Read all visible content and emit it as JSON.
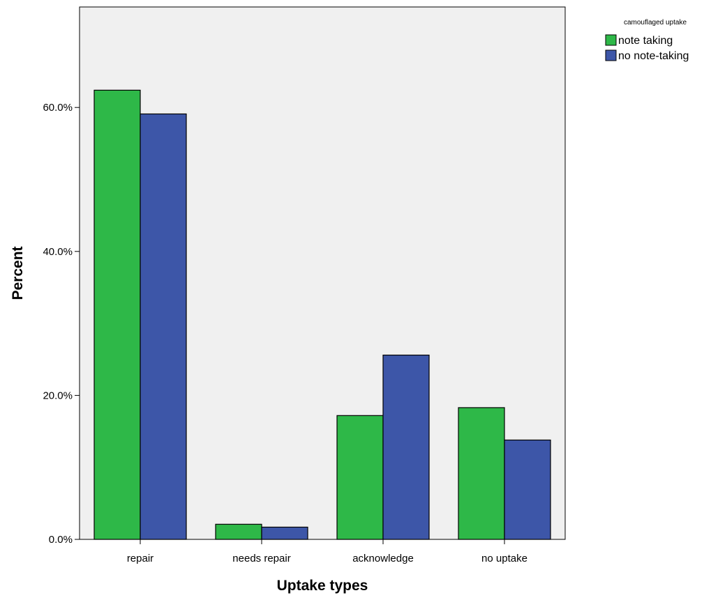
{
  "chart_data": {
    "type": "bar",
    "title": "",
    "xlabel": "Uptake types",
    "ylabel": "Percent",
    "categories": [
      "repair",
      "needs repair",
      "acknowledge",
      "no uptake"
    ],
    "series": [
      {
        "name": "note taking",
        "color": "#2EB848",
        "values": [
          62.4,
          2.1,
          17.2,
          18.3
        ]
      },
      {
        "name": "no note-taking",
        "color": "#3D56A8",
        "values": [
          59.1,
          1.7,
          25.6,
          13.8
        ]
      }
    ],
    "ylim": [
      0,
      74
    ],
    "yticks": [
      0,
      20,
      40,
      60
    ],
    "ytick_labels": [
      "0.0%",
      "20.0%",
      "40.0%",
      "60.0%"
    ],
    "legend": {
      "title": "camouflaged uptake",
      "position": "top-right outside plot"
    },
    "plot_background": "#F0F0F0",
    "grid": false
  }
}
